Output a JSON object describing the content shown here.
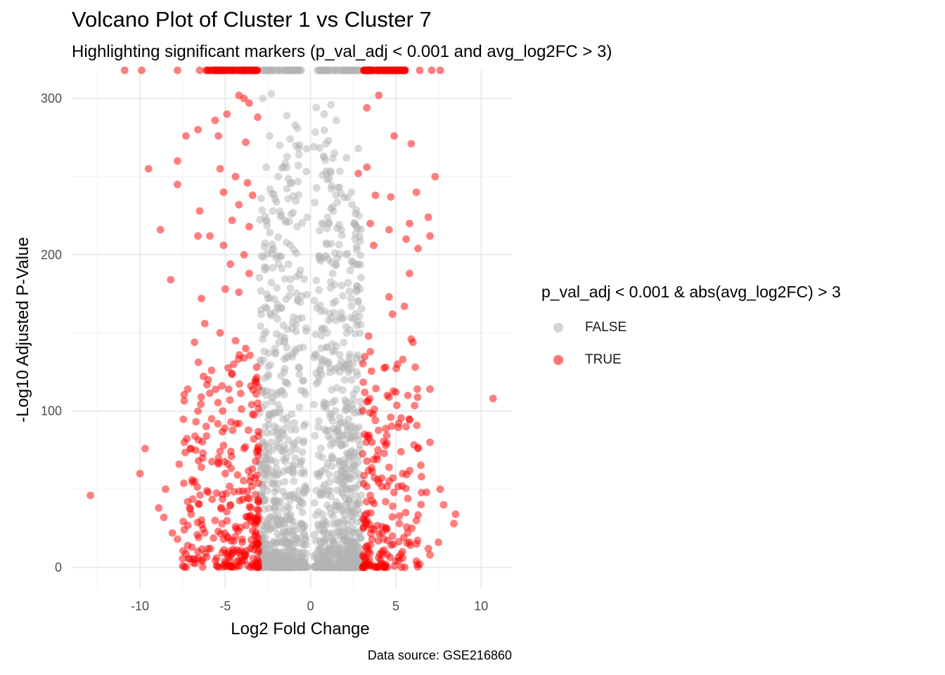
{
  "chart_data": {
    "type": "scatter",
    "title": "Volcano Plot of Cluster 1 vs Cluster 7",
    "subtitle": "Highlighting significant markers (p_val_adj < 0.001 and avg_log2FC > 3)",
    "xlabel": "Log2 Fold Change",
    "ylabel": "-Log10 Adjusted P-Value",
    "caption": "Data source: GSE216860",
    "xlim": [
      -14,
      11.8
    ],
    "ylim": [
      -14,
      318
    ],
    "x_ticks": [
      -10,
      -5,
      0,
      5,
      10
    ],
    "y_ticks": [
      0,
      100,
      200,
      300
    ],
    "grid": true,
    "legend": {
      "title": "p_val_adj < 0.001 & abs(avg_log2FC) > 3",
      "placement": "right",
      "entries": [
        {
          "label": "FALSE",
          "color": "#b3b3b3"
        },
        {
          "label": "TRUE",
          "color": "#ff0000"
        }
      ]
    },
    "series": [
      {
        "name": "FALSE",
        "color": "#b3b3b3",
        "points": [
          [
            -2.8,
            300
          ],
          [
            -2.3,
            303
          ],
          [
            -1.4,
            289
          ],
          [
            -0.9,
            283
          ],
          [
            0.8,
            290
          ],
          [
            1.2,
            296
          ],
          [
            1.5,
            286
          ],
          [
            -2.4,
            276
          ],
          [
            -1.8,
            270
          ],
          [
            -1.2,
            274
          ],
          [
            -0.7,
            268
          ],
          [
            0.9,
            271
          ],
          [
            1.4,
            265
          ],
          [
            2.1,
            262
          ],
          [
            2.8,
            268
          ],
          [
            -2.6,
            256
          ],
          [
            -1.9,
            250
          ],
          [
            -1.1,
            246
          ],
          [
            0.7,
            251
          ],
          [
            1.6,
            243
          ],
          [
            2.4,
            240
          ],
          [
            -2.9,
            236
          ],
          [
            -2.2,
            228
          ],
          [
            -1.5,
            222
          ],
          [
            -0.8,
            218
          ],
          [
            1.0,
            224
          ],
          [
            1.8,
            216
          ],
          [
            2.6,
            210
          ],
          [
            -2.7,
            205
          ],
          [
            -2.0,
            198
          ],
          [
            -1.3,
            194
          ],
          [
            -0.6,
            190
          ],
          [
            0.6,
            196
          ],
          [
            1.3,
            188
          ],
          [
            2.2,
            182
          ],
          [
            2.9,
            178
          ],
          [
            -2.5,
            172
          ],
          [
            -1.7,
            166
          ],
          [
            -1.0,
            160
          ],
          [
            0.8,
            164
          ],
          [
            1.5,
            158
          ],
          [
            2.3,
            152
          ],
          [
            -2.8,
            146
          ],
          [
            -2.1,
            140
          ],
          [
            -1.4,
            134
          ],
          [
            -0.7,
            128
          ],
          [
            0.7,
            132
          ],
          [
            1.4,
            126
          ],
          [
            2.0,
            120
          ],
          [
            2.7,
            114
          ],
          [
            -2.6,
            110
          ],
          [
            -1.9,
            104
          ],
          [
            -1.1,
            98
          ],
          [
            0.9,
            102
          ],
          [
            1.7,
            96
          ],
          [
            2.5,
            90
          ],
          [
            -2.9,
            86
          ],
          [
            -2.3,
            80
          ],
          [
            -1.6,
            74
          ],
          [
            -0.9,
            70
          ],
          [
            0.6,
            76
          ],
          [
            1.3,
            70
          ],
          [
            2.1,
            64
          ],
          [
            2.8,
            60
          ],
          [
            -2.7,
            56
          ],
          [
            -2.0,
            50
          ],
          [
            -1.3,
            46
          ],
          [
            -0.6,
            42
          ],
          [
            0.7,
            48
          ],
          [
            1.5,
            42
          ],
          [
            2.3,
            38
          ],
          [
            2.9,
            34
          ],
          [
            -2.8,
            30
          ],
          [
            -2.2,
            26
          ],
          [
            -1.5,
            22
          ],
          [
            -0.8,
            18
          ],
          [
            0.8,
            24
          ],
          [
            1.6,
            20
          ],
          [
            2.4,
            16
          ],
          [
            -2.6,
            12
          ],
          [
            -1.8,
            9
          ],
          [
            -1.0,
            6
          ],
          [
            -0.4,
            3
          ],
          [
            0.4,
            4
          ],
          [
            1.1,
            8
          ],
          [
            1.9,
            10
          ],
          [
            2.7,
            13
          ],
          [
            -2.4,
            5
          ],
          [
            -1.5,
            3
          ],
          [
            0.9,
            2
          ],
          [
            1.8,
            4
          ],
          [
            2.6,
            6
          ]
        ]
      },
      {
        "name": "TRUE",
        "color": "#ff0000",
        "points": [
          [
            -10.9,
            318
          ],
          [
            -9.9,
            318
          ],
          [
            -7.8,
            318
          ],
          [
            -6.5,
            318
          ],
          [
            -5.8,
            318
          ],
          [
            -5.1,
            318
          ],
          [
            -4.6,
            318
          ],
          [
            -3.9,
            318
          ],
          [
            -3.3,
            318
          ],
          [
            3.4,
            318
          ],
          [
            3.9,
            318
          ],
          [
            4.5,
            318
          ],
          [
            5.2,
            318
          ],
          [
            6.4,
            318
          ],
          [
            7.1,
            318
          ],
          [
            7.6,
            318
          ],
          [
            -4.2,
            302
          ],
          [
            -3.9,
            300
          ],
          [
            -3.6,
            297
          ],
          [
            -4.9,
            290
          ],
          [
            -5.6,
            286
          ],
          [
            -6.6,
            280
          ],
          [
            -7.3,
            276
          ],
          [
            -5.4,
            276
          ],
          [
            -3.8,
            272
          ],
          [
            -3.1,
            288
          ],
          [
            3.3,
            294
          ],
          [
            4.0,
            302
          ],
          [
            4.9,
            276
          ],
          [
            5.9,
            271
          ],
          [
            -9.5,
            255
          ],
          [
            -7.8,
            260
          ],
          [
            -5.3,
            255
          ],
          [
            -4.4,
            250
          ],
          [
            -3.7,
            246
          ],
          [
            3.3,
            256
          ],
          [
            2.8,
            252
          ],
          [
            7.3,
            250
          ],
          [
            -7.8,
            245
          ],
          [
            -5.1,
            240
          ],
          [
            -4.2,
            232
          ],
          [
            -3.4,
            238
          ],
          [
            3.8,
            238
          ],
          [
            4.7,
            237
          ],
          [
            6.2,
            240
          ],
          [
            -6.5,
            228
          ],
          [
            -5.9,
            212
          ],
          [
            -4.6,
            222
          ],
          [
            -3.6,
            218
          ],
          [
            3.5,
            220
          ],
          [
            4.6,
            216
          ],
          [
            5.8,
            220
          ],
          [
            6.9,
            224
          ],
          [
            -8.8,
            216
          ],
          [
            -6.6,
            212
          ],
          [
            -5.1,
            206
          ],
          [
            -3.9,
            200
          ],
          [
            3.7,
            206
          ],
          [
            5.6,
            210
          ],
          [
            6.3,
            204
          ],
          [
            7.0,
            212
          ],
          [
            -8.2,
            184
          ],
          [
            -4.7,
            194
          ],
          [
            -3.6,
            188
          ],
          [
            5.8,
            188
          ],
          [
            -6.4,
            172
          ],
          [
            -5.0,
            178
          ],
          [
            -4.2,
            176
          ],
          [
            4.6,
            173
          ],
          [
            -6.2,
            156
          ],
          [
            -5.3,
            150
          ],
          [
            -4.4,
            145
          ],
          [
            -3.8,
            140
          ],
          [
            3.4,
            148
          ],
          [
            4.8,
            162
          ],
          [
            5.5,
            167
          ],
          [
            5.9,
            146
          ],
          [
            6.0,
            144
          ],
          [
            -6.8,
            144
          ],
          [
            -5.8,
            126
          ],
          [
            -4.5,
            130
          ],
          [
            -3.9,
            134
          ],
          [
            3.5,
            138
          ],
          [
            4.4,
            128
          ],
          [
            5.1,
            130
          ],
          [
            -7.2,
            114
          ],
          [
            -6.0,
            120
          ],
          [
            -4.8,
            114
          ],
          [
            -3.5,
            116
          ],
          [
            3.3,
            106
          ],
          [
            4.5,
            110
          ],
          [
            5.0,
            112
          ],
          [
            5.7,
            110
          ],
          [
            7.0,
            114
          ],
          [
            10.7,
            108
          ],
          [
            -6.6,
            100
          ],
          [
            -5.8,
            95
          ],
          [
            -4.2,
            92
          ],
          [
            -3.4,
            98
          ],
          [
            3.8,
            94
          ],
          [
            4.7,
            96
          ],
          [
            5.6,
            90
          ],
          [
            -7.4,
            80
          ],
          [
            -6.1,
            84
          ],
          [
            -5.1,
            78
          ],
          [
            -3.9,
            76
          ],
          [
            3.6,
            80
          ],
          [
            4.4,
            78
          ],
          [
            5.3,
            74
          ],
          [
            6.3,
            76
          ],
          [
            7.0,
            80
          ],
          [
            -9.7,
            76
          ],
          [
            -7.7,
            66
          ],
          [
            -6.4,
            64
          ],
          [
            -5.0,
            60
          ],
          [
            -3.5,
            58
          ],
          [
            3.4,
            62
          ],
          [
            4.6,
            64
          ],
          [
            5.4,
            60
          ],
          [
            6.5,
            58
          ],
          [
            -10.0,
            60
          ],
          [
            -8.5,
            50
          ],
          [
            -7.2,
            42
          ],
          [
            -6.0,
            48
          ],
          [
            -4.7,
            40
          ],
          [
            -3.6,
            44
          ],
          [
            3.5,
            46
          ],
          [
            4.4,
            42
          ],
          [
            5.7,
            44
          ],
          [
            6.8,
            48
          ],
          [
            7.6,
            50
          ],
          [
            -12.9,
            46
          ],
          [
            -8.9,
            38
          ],
          [
            -7.0,
            34
          ],
          [
            -5.6,
            30
          ],
          [
            -4.4,
            26
          ],
          [
            -3.3,
            28
          ],
          [
            3.3,
            30
          ],
          [
            4.2,
            26
          ],
          [
            5.2,
            28
          ],
          [
            6.2,
            30
          ],
          [
            7.8,
            40
          ],
          [
            8.5,
            34
          ],
          [
            -8.6,
            32
          ],
          [
            -7.4,
            24
          ],
          [
            -6.2,
            22
          ],
          [
            -5.1,
            18
          ],
          [
            -4.0,
            16
          ],
          [
            3.6,
            18
          ],
          [
            4.8,
            20
          ],
          [
            5.8,
            16
          ],
          [
            6.9,
            12
          ],
          [
            7.5,
            16
          ],
          [
            8.4,
            28
          ],
          [
            -8.1,
            22
          ],
          [
            -7.2,
            14
          ],
          [
            -6.0,
            12
          ],
          [
            -4.8,
            10
          ],
          [
            -3.8,
            8
          ],
          [
            3.4,
            10
          ],
          [
            4.5,
            8
          ],
          [
            5.4,
            6
          ],
          [
            6.2,
            4
          ],
          [
            7.0,
            8
          ],
          [
            -7.8,
            18
          ],
          [
            -6.6,
            10
          ],
          [
            -5.5,
            6
          ],
          [
            -4.3,
            4
          ],
          [
            -3.4,
            2
          ],
          [
            3.2,
            3
          ],
          [
            4.1,
            2
          ],
          [
            5.0,
            4
          ],
          [
            6.4,
            2
          ]
        ]
      }
    ],
    "bulk_false": {
      "count": 1400,
      "x_half_width": 3,
      "y_max": 305
    }
  }
}
